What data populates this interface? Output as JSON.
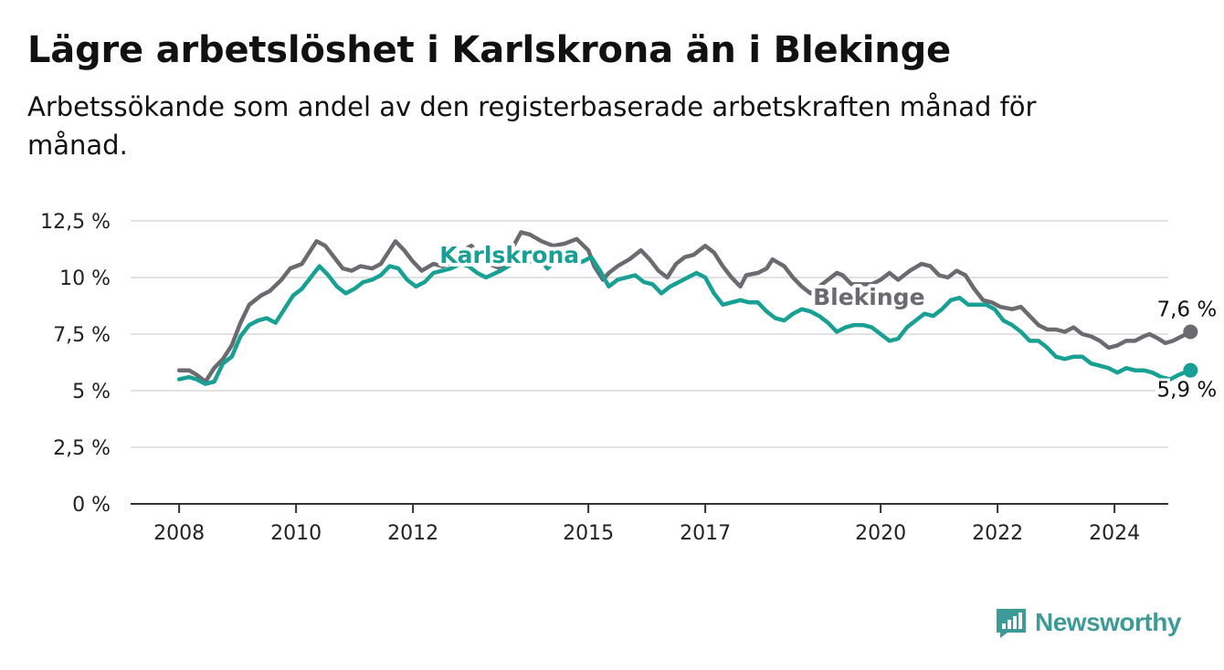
{
  "title": "Lägre arbetslöshet i Karlskrona än i Blekinge",
  "subtitle": "Arbetssökande som andel av den registerbaserade arbetskraften månad för månad.",
  "brand": {
    "name": "Newsworthy",
    "icon": "newsworthy-logo-icon",
    "color": "#3d9a96"
  },
  "chart_data": {
    "type": "line",
    "grid": true,
    "legend": "inline labels",
    "ylim": [
      0,
      12.5
    ],
    "yticks": [
      {
        "value": 0,
        "label": "0 %"
      },
      {
        "value": 2.5,
        "label": "2,5 %"
      },
      {
        "value": 5,
        "label": "5 %"
      },
      {
        "value": 7.5,
        "label": "7,5 %"
      },
      {
        "value": 10,
        "label": "10 %"
      },
      {
        "value": 12.5,
        "label": "12,5 %"
      }
    ],
    "xlim": [
      2007.17,
      2024.92
    ],
    "xticks": [
      {
        "value": 2008,
        "label": "2008"
      },
      {
        "value": 2010,
        "label": "2010"
      },
      {
        "value": 2012,
        "label": "2012"
      },
      {
        "value": 2015,
        "label": "2015"
      },
      {
        "value": 2017,
        "label": "2017"
      },
      {
        "value": 2020,
        "label": "2020"
      },
      {
        "value": 2022,
        "label": "2022"
      },
      {
        "value": 2024,
        "label": "2024"
      }
    ],
    "series": [
      {
        "name": "Blekinge",
        "color": "#6b6a70",
        "end_label": "7,6 %",
        "points": [
          [
            2008.0,
            5.9
          ],
          [
            2008.17,
            5.9
          ],
          [
            2008.3,
            5.7
          ],
          [
            2008.45,
            5.4
          ],
          [
            2008.6,
            6.0
          ],
          [
            2008.75,
            6.4
          ],
          [
            2008.9,
            7.0
          ],
          [
            2009.05,
            8.0
          ],
          [
            2009.2,
            8.8
          ],
          [
            2009.4,
            9.2
          ],
          [
            2009.55,
            9.4
          ],
          [
            2009.75,
            9.9
          ],
          [
            2009.9,
            10.4
          ],
          [
            2010.1,
            10.6
          ],
          [
            2010.25,
            11.2
          ],
          [
            2010.35,
            11.6
          ],
          [
            2010.5,
            11.4
          ],
          [
            2010.65,
            10.9
          ],
          [
            2010.8,
            10.4
          ],
          [
            2010.95,
            10.3
          ],
          [
            2011.1,
            10.5
          ],
          [
            2011.3,
            10.4
          ],
          [
            2011.45,
            10.6
          ],
          [
            2011.6,
            11.2
          ],
          [
            2011.7,
            11.6
          ],
          [
            2011.85,
            11.2
          ],
          [
            2012.0,
            10.7
          ],
          [
            2012.15,
            10.3
          ],
          [
            2012.35,
            10.6
          ],
          [
            2012.5,
            10.5
          ],
          [
            2012.7,
            10.7
          ],
          [
            2012.85,
            11.2
          ],
          [
            2013.0,
            11.4
          ],
          [
            2013.15,
            11.0
          ],
          [
            2013.3,
            10.6
          ],
          [
            2013.5,
            10.4
          ],
          [
            2013.7,
            11.3
          ],
          [
            2013.85,
            12.0
          ],
          [
            2014.0,
            11.9
          ],
          [
            2014.2,
            11.6
          ],
          [
            2014.4,
            11.4
          ],
          [
            2014.6,
            11.5
          ],
          [
            2014.8,
            11.7
          ],
          [
            2015.0,
            11.2
          ],
          [
            2015.1,
            10.5
          ],
          [
            2015.25,
            9.9
          ],
          [
            2015.35,
            10.2
          ],
          [
            2015.5,
            10.5
          ],
          [
            2015.7,
            10.8
          ],
          [
            2015.9,
            11.2
          ],
          [
            2016.05,
            10.8
          ],
          [
            2016.2,
            10.3
          ],
          [
            2016.35,
            10.0
          ],
          [
            2016.5,
            10.6
          ],
          [
            2016.65,
            10.9
          ],
          [
            2016.8,
            11.0
          ],
          [
            2017.0,
            11.4
          ],
          [
            2017.15,
            11.1
          ],
          [
            2017.3,
            10.5
          ],
          [
            2017.45,
            10.0
          ],
          [
            2017.6,
            9.6
          ],
          [
            2017.7,
            10.1
          ],
          [
            2017.9,
            10.2
          ],
          [
            2018.05,
            10.4
          ],
          [
            2018.15,
            10.8
          ],
          [
            2018.35,
            10.5
          ],
          [
            2018.5,
            10.0
          ],
          [
            2018.65,
            9.6
          ],
          [
            2018.8,
            9.3
          ],
          [
            2018.95,
            9.6
          ],
          [
            2019.1,
            9.9
          ],
          [
            2019.25,
            10.2
          ],
          [
            2019.35,
            10.1
          ],
          [
            2019.5,
            9.7
          ],
          [
            2019.85,
            9.7
          ],
          [
            2020.0,
            9.9
          ],
          [
            2020.15,
            10.2
          ],
          [
            2020.3,
            9.9
          ],
          [
            2020.5,
            10.3
          ],
          [
            2020.7,
            10.6
          ],
          [
            2020.85,
            10.5
          ],
          [
            2021.0,
            10.1
          ],
          [
            2021.15,
            10.0
          ],
          [
            2021.3,
            10.3
          ],
          [
            2021.45,
            10.1
          ],
          [
            2021.6,
            9.5
          ],
          [
            2021.75,
            9.0
          ],
          [
            2021.9,
            8.9
          ],
          [
            2022.05,
            8.7
          ],
          [
            2022.25,
            8.6
          ],
          [
            2022.4,
            8.7
          ],
          [
            2022.55,
            8.3
          ],
          [
            2022.7,
            7.9
          ],
          [
            2022.85,
            7.7
          ],
          [
            2023.0,
            7.7
          ],
          [
            2023.15,
            7.6
          ],
          [
            2023.3,
            7.8
          ],
          [
            2023.45,
            7.5
          ],
          [
            2023.6,
            7.4
          ],
          [
            2023.75,
            7.2
          ],
          [
            2023.9,
            6.9
          ],
          [
            2024.05,
            7.0
          ],
          [
            2024.2,
            7.2
          ],
          [
            2024.35,
            7.2
          ],
          [
            2024.5,
            7.4
          ],
          [
            2024.6,
            7.5
          ],
          [
            2024.75,
            7.3
          ],
          [
            2024.87,
            7.1
          ],
          [
            2025.0,
            7.2
          ],
          [
            2025.15,
            7.4
          ],
          [
            2025.3,
            7.6
          ]
        ]
      },
      {
        "name": "Karlskrona",
        "color": "#17a093",
        "end_label": "5,9 %",
        "points": [
          [
            2008.0,
            5.5
          ],
          [
            2008.17,
            5.6
          ],
          [
            2008.3,
            5.5
          ],
          [
            2008.45,
            5.3
          ],
          [
            2008.6,
            5.4
          ],
          [
            2008.75,
            6.2
          ],
          [
            2008.9,
            6.5
          ],
          [
            2009.05,
            7.4
          ],
          [
            2009.2,
            7.9
          ],
          [
            2009.35,
            8.1
          ],
          [
            2009.5,
            8.2
          ],
          [
            2009.65,
            8.0
          ],
          [
            2009.8,
            8.6
          ],
          [
            2009.95,
            9.2
          ],
          [
            2010.1,
            9.5
          ],
          [
            2010.25,
            10.0
          ],
          [
            2010.4,
            10.5
          ],
          [
            2010.55,
            10.1
          ],
          [
            2010.7,
            9.6
          ],
          [
            2010.85,
            9.3
          ],
          [
            2011.0,
            9.5
          ],
          [
            2011.15,
            9.8
          ],
          [
            2011.3,
            9.9
          ],
          [
            2011.45,
            10.1
          ],
          [
            2011.6,
            10.5
          ],
          [
            2011.75,
            10.4
          ],
          [
            2011.9,
            9.9
          ],
          [
            2012.05,
            9.6
          ],
          [
            2012.2,
            9.8
          ],
          [
            2012.35,
            10.2
          ],
          [
            2012.5,
            10.3
          ],
          [
            2012.65,
            10.4
          ],
          [
            2012.8,
            10.6
          ],
          [
            2012.95,
            10.5
          ],
          [
            2013.1,
            10.2
          ],
          [
            2013.25,
            10.0
          ],
          [
            2013.5,
            10.3
          ],
          [
            2013.7,
            10.6
          ],
          [
            2013.85,
            10.7
          ],
          [
            2014.0,
            10.7
          ],
          [
            2014.15,
            10.9
          ],
          [
            2014.3,
            10.4
          ],
          [
            2014.45,
            10.8
          ],
          [
            2014.6,
            11.1
          ],
          [
            2014.75,
            10.6
          ],
          [
            2014.9,
            10.7
          ],
          [
            2015.05,
            10.9
          ],
          [
            2015.2,
            10.3
          ],
          [
            2015.35,
            9.6
          ],
          [
            2015.5,
            9.9
          ],
          [
            2015.65,
            10.0
          ],
          [
            2015.8,
            10.1
          ],
          [
            2015.95,
            9.8
          ],
          [
            2016.1,
            9.7
          ],
          [
            2016.25,
            9.3
          ],
          [
            2016.4,
            9.6
          ],
          [
            2016.55,
            9.8
          ],
          [
            2016.7,
            10.0
          ],
          [
            2016.85,
            10.2
          ],
          [
            2017.0,
            10.0
          ],
          [
            2017.15,
            9.3
          ],
          [
            2017.3,
            8.8
          ],
          [
            2017.45,
            8.9
          ],
          [
            2017.6,
            9.0
          ],
          [
            2017.75,
            8.9
          ],
          [
            2017.9,
            8.9
          ],
          [
            2018.05,
            8.5
          ],
          [
            2018.2,
            8.2
          ],
          [
            2018.35,
            8.1
          ],
          [
            2018.5,
            8.4
          ],
          [
            2018.65,
            8.6
          ],
          [
            2018.8,
            8.5
          ],
          [
            2018.95,
            8.3
          ],
          [
            2019.1,
            8.0
          ],
          [
            2019.25,
            7.6
          ],
          [
            2019.4,
            7.8
          ],
          [
            2019.55,
            7.9
          ],
          [
            2019.7,
            7.9
          ],
          [
            2019.85,
            7.8
          ],
          [
            2020.0,
            7.5
          ],
          [
            2020.15,
            7.2
          ],
          [
            2020.3,
            7.3
          ],
          [
            2020.45,
            7.8
          ],
          [
            2020.6,
            8.1
          ],
          [
            2020.75,
            8.4
          ],
          [
            2020.9,
            8.3
          ],
          [
            2021.05,
            8.6
          ],
          [
            2021.2,
            9.0
          ],
          [
            2021.35,
            9.1
          ],
          [
            2021.5,
            8.8
          ],
          [
            2021.65,
            8.8
          ],
          [
            2021.8,
            8.8
          ],
          [
            2021.95,
            8.6
          ],
          [
            2022.1,
            8.1
          ],
          [
            2022.25,
            7.9
          ],
          [
            2022.4,
            7.6
          ],
          [
            2022.55,
            7.2
          ],
          [
            2022.7,
            7.2
          ],
          [
            2022.85,
            6.9
          ],
          [
            2023.0,
            6.5
          ],
          [
            2023.15,
            6.4
          ],
          [
            2023.3,
            6.5
          ],
          [
            2023.45,
            6.5
          ],
          [
            2023.6,
            6.2
          ],
          [
            2023.75,
            6.1
          ],
          [
            2023.9,
            6.0
          ],
          [
            2024.05,
            5.8
          ],
          [
            2024.2,
            6.0
          ],
          [
            2024.35,
            5.9
          ],
          [
            2024.5,
            5.9
          ],
          [
            2024.65,
            5.8
          ],
          [
            2024.8,
            5.6
          ],
          [
            2024.95,
            5.5
          ],
          [
            2025.1,
            5.7
          ],
          [
            2025.3,
            5.9
          ]
        ]
      }
    ]
  }
}
